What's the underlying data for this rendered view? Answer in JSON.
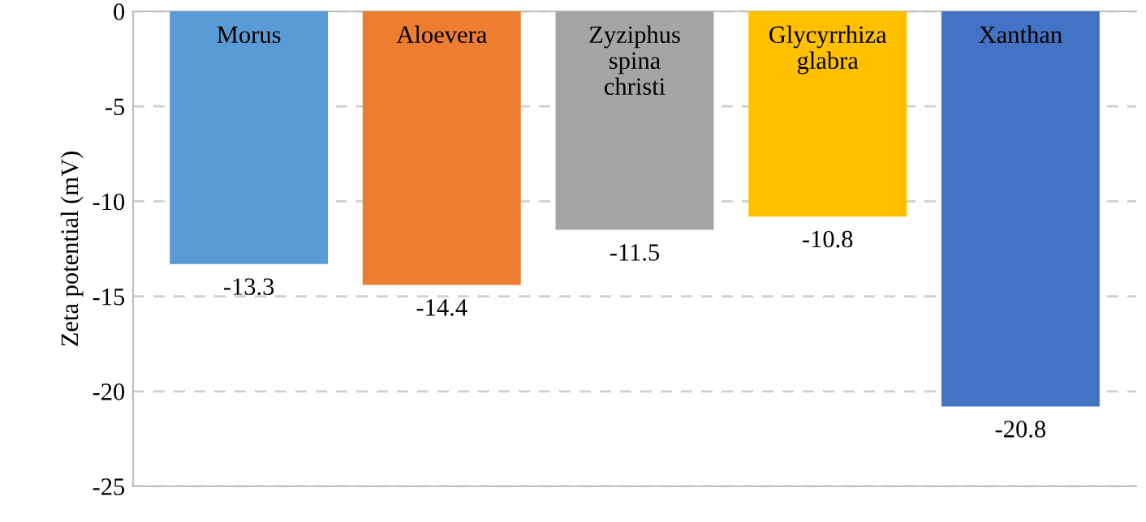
{
  "chart_data": {
    "type": "bar",
    "ylabel": "Zeta potential (mV)",
    "categories": [
      "Morus",
      "Aloevera",
      "Zyziphus\nspina\nchristi",
      "Glycyrrhiza\nglabra",
      "Xanthan"
    ],
    "values": [
      -13.3,
      -14.4,
      -11.5,
      -10.8,
      -20.8
    ],
    "colors": [
      "#5b9bd5",
      "#ed7d31",
      "#a5a5a5",
      "#ffc000",
      "#4472c4"
    ],
    "ylim": [
      -25,
      0
    ],
    "yticks": [
      -25,
      -20,
      -15,
      -10,
      -5,
      0
    ],
    "grid": "y",
    "data_labels": true,
    "legend": false
  }
}
